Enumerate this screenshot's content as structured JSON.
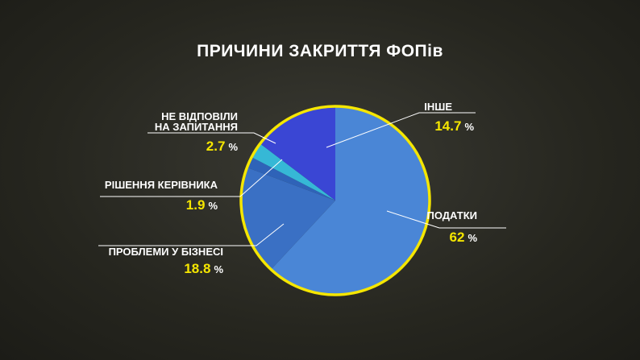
{
  "chart_data": {
    "type": "pie",
    "title": "ПРИЧИНИ ЗАКРИТТЯ ФОПів",
    "unit": "%",
    "slices": [
      {
        "label": "ПОДАТКИ",
        "value": 62,
        "value_text": "62",
        "color": "#4a86d6"
      },
      {
        "label": "ПРОБЛЕМИ У БІЗНЕСІ",
        "value": 18.8,
        "value_text": "18.8",
        "color": "#3a70c4"
      },
      {
        "label": "РІШЕННЯ КЕРІВНИКА",
        "value": 1.9,
        "value_text": "1.9",
        "color": "#2f63b8"
      },
      {
        "label_lines": [
          "НЕ ВІДПОВІЛИ",
          "НА ЗАПИТАННЯ"
        ],
        "value": 2.7,
        "value_text": "2.7",
        "color": "#36b8d6"
      },
      {
        "label": "ІНШЕ",
        "value": 14.7,
        "value_text": "14.7",
        "color": "#3a46d4"
      }
    ],
    "outline_color": "#f5e600"
  }
}
